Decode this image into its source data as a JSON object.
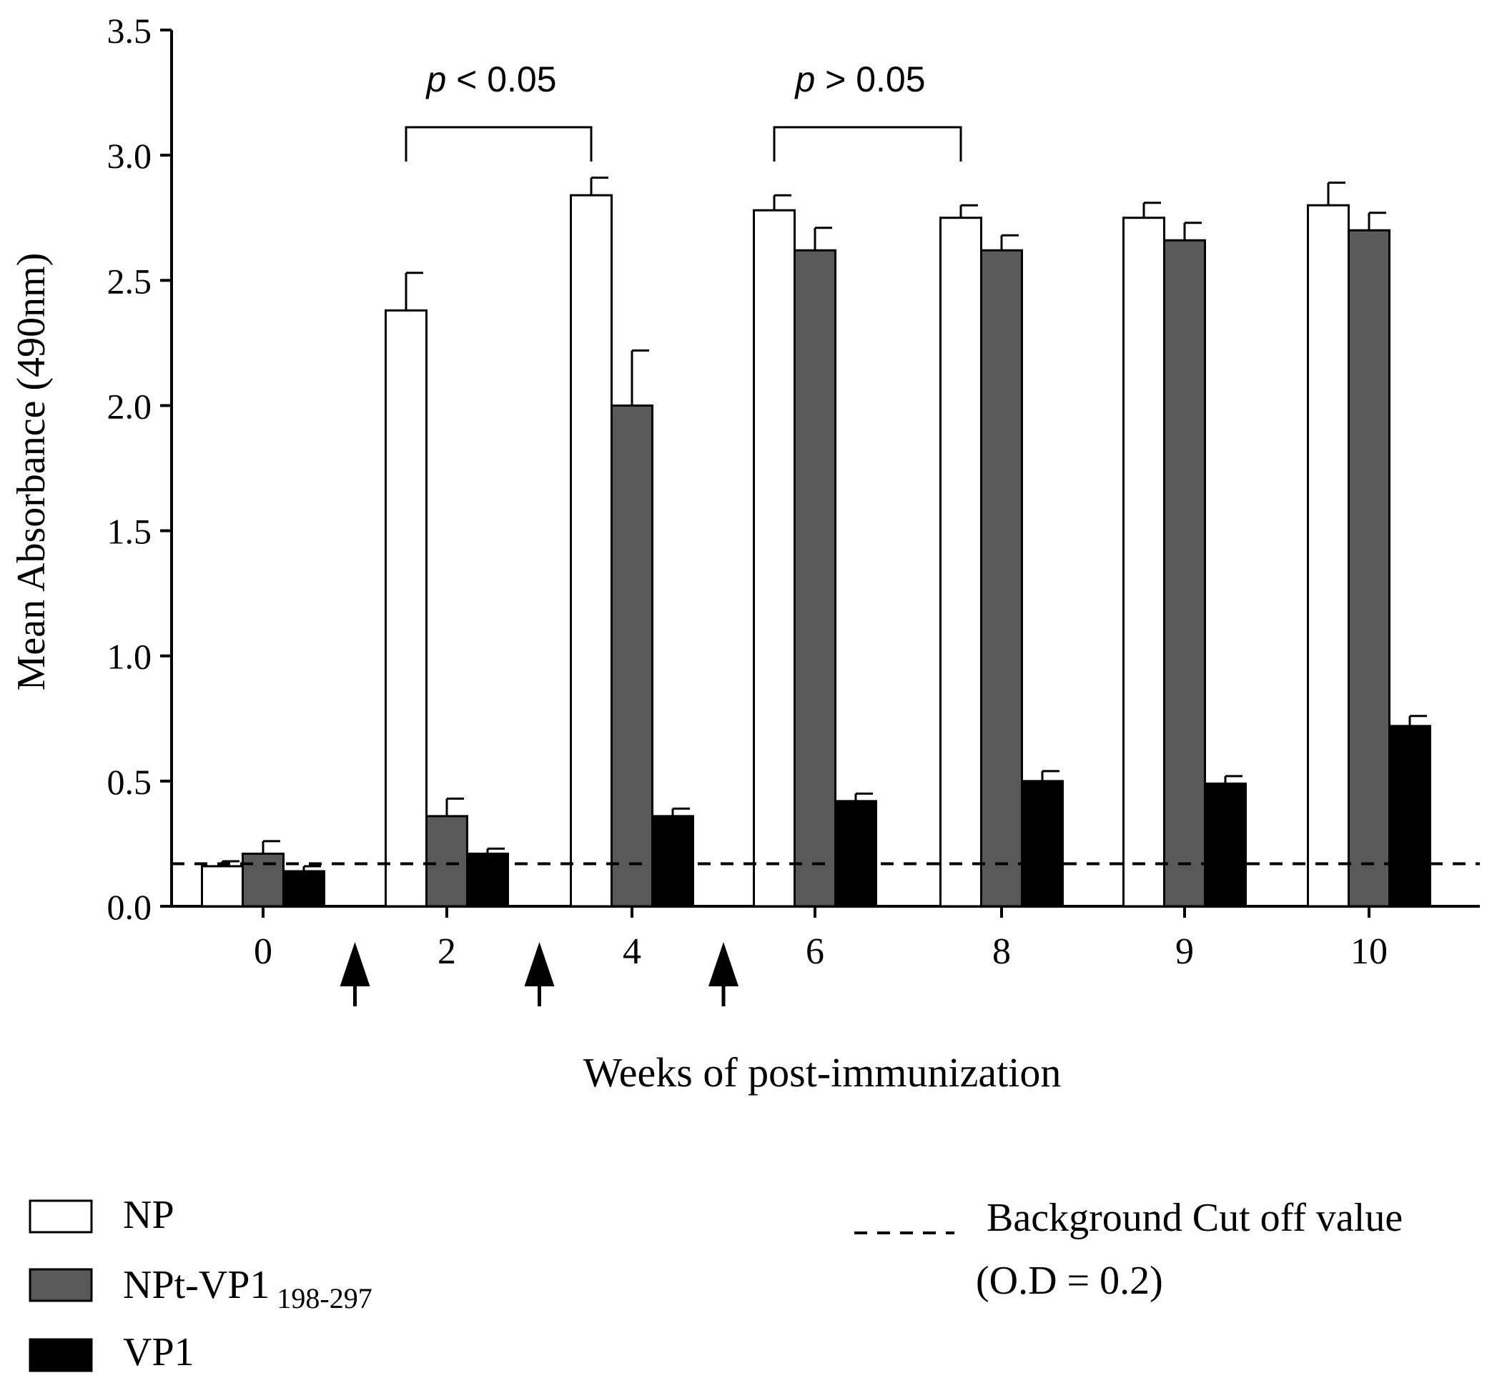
{
  "chart_data": {
    "type": "bar",
    "title": "",
    "xlabel": "Weeks of post-immunization",
    "ylabel": "Mean Absorbance (490nm)",
    "ylim": [
      0,
      3.5
    ],
    "yticks": [
      "0.0",
      "0.5",
      "1.0",
      "1.5",
      "2.0",
      "2.5",
      "3.0",
      "3.5"
    ],
    "categories": [
      "0",
      "2",
      "4",
      "6",
      "8",
      "9",
      "10"
    ],
    "series": [
      {
        "name": "NP",
        "color": "#ffffff",
        "values": [
          0.16,
          2.38,
          2.84,
          2.78,
          2.75,
          2.75,
          2.8
        ],
        "errors": [
          0.02,
          0.15,
          0.07,
          0.06,
          0.05,
          0.06,
          0.09
        ]
      },
      {
        "name": "NPt-VP1",
        "subscript": "198-297",
        "color": "#595959",
        "values": [
          0.21,
          0.36,
          2.0,
          2.62,
          2.62,
          2.66,
          2.7
        ],
        "errors": [
          0.05,
          0.07,
          0.22,
          0.09,
          0.06,
          0.07,
          0.07
        ]
      },
      {
        "name": "VP1",
        "color": "#000000",
        "values": [
          0.14,
          0.21,
          0.36,
          0.42,
          0.5,
          0.49,
          0.72
        ],
        "errors": [
          0.02,
          0.02,
          0.03,
          0.03,
          0.04,
          0.03,
          0.04
        ]
      }
    ],
    "cutoff": {
      "value": 0.17,
      "label_line1": "Background Cut off value",
      "label_line2": "(O.D = 0.2)"
    },
    "immunization_arrows_after_category": [
      "0",
      "2",
      "4"
    ],
    "annotations": [
      {
        "text": "p < 0.05",
        "p_symbol": "p",
        "rest": " < 0.05",
        "from": {
          "category": "2",
          "series": "NP"
        },
        "to": {
          "category": "4",
          "series": "NP"
        }
      },
      {
        "text": "p > 0.05",
        "p_symbol": "p",
        "rest": " > 0.05",
        "from": {
          "category": "6",
          "series": "NP"
        },
        "to": {
          "category": "8",
          "series": "NP"
        }
      }
    ],
    "legend_position": "bottom"
  }
}
